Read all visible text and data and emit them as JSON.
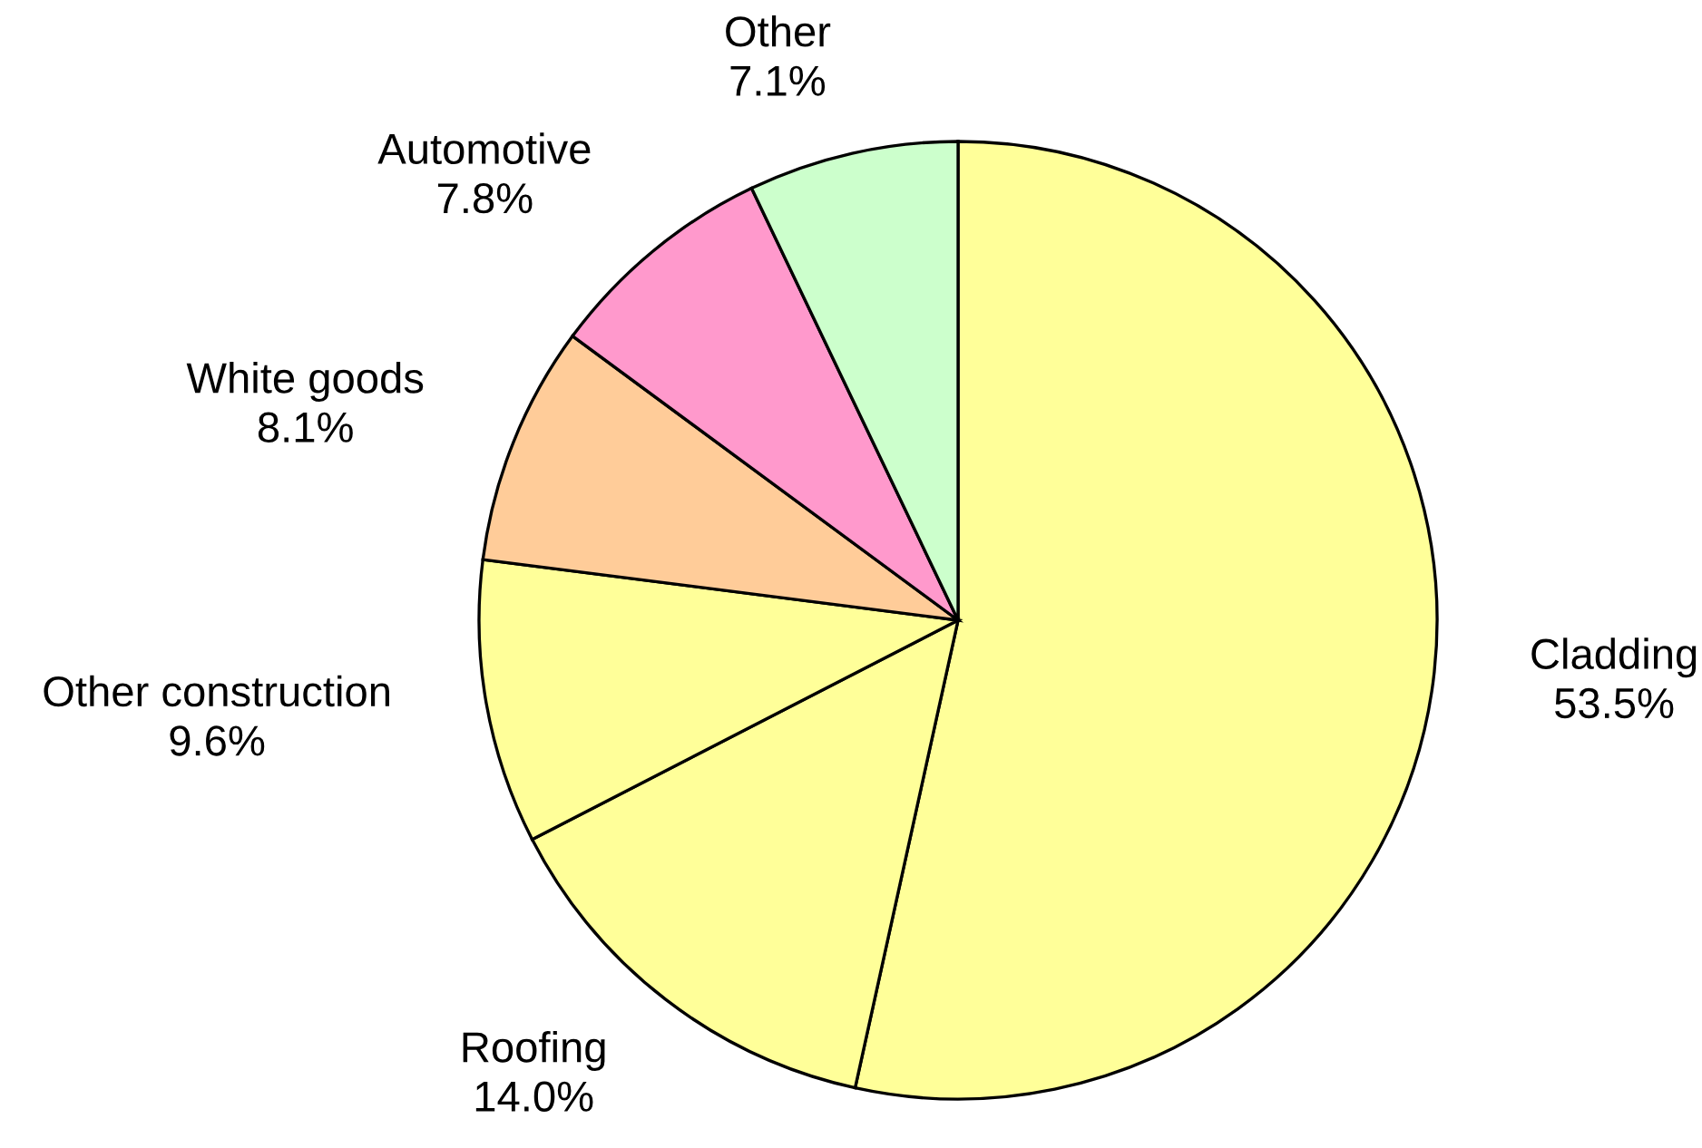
{
  "chart_data": {
    "type": "pie",
    "categories": [
      "Cladding",
      "Roofing",
      "Other construction",
      "White goods",
      "Automotive",
      "Other"
    ],
    "values": [
      53.5,
      14.0,
      9.6,
      8.1,
      7.8,
      7.1
    ],
    "value_labels": [
      "53.5%",
      "14.0%",
      "9.6%",
      "8.1%",
      "7.8%",
      "7.1%"
    ],
    "colors": [
      "#ffff99",
      "#ffff99",
      "#ffff99",
      "#ffcc99",
      "#ff99cc",
      "#ccffcc"
    ]
  }
}
